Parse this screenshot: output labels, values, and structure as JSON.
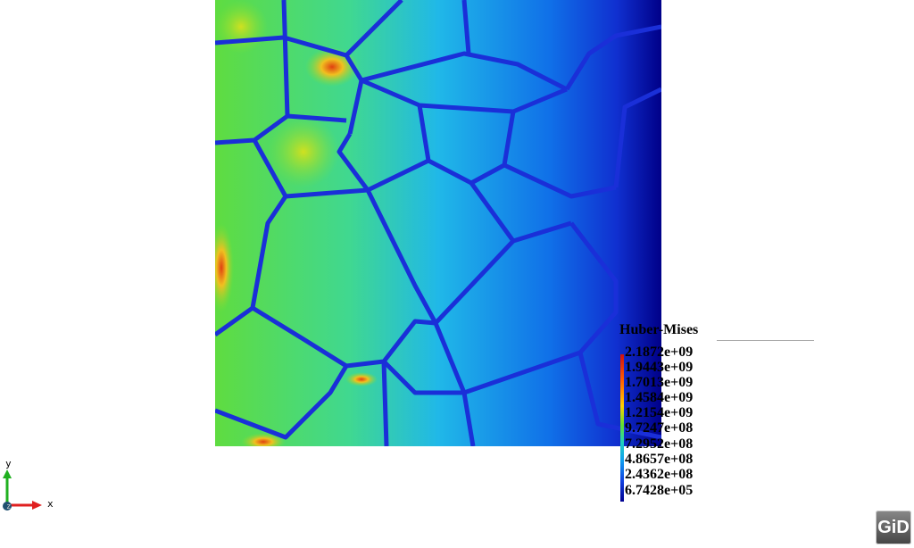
{
  "result_name": "Huber-Mises",
  "legend": {
    "values": [
      "2.1872e+09",
      "1.9443e+09",
      "1.7013e+09",
      "1.4584e+09",
      "1.2154e+09",
      "9.7247e+08",
      "7.2952e+08",
      "4.8657e+08",
      "2.4362e+08",
      "6.7428e+05"
    ],
    "colors": {
      "max": "#d01010",
      "mid": "#60e030",
      "min": "#000090"
    }
  },
  "axes": {
    "x": "x",
    "y": "y",
    "z": "z"
  },
  "logo": "GiD",
  "colors": {
    "grain_boundary": "#1a2fd8",
    "background": "#ffffff"
  }
}
